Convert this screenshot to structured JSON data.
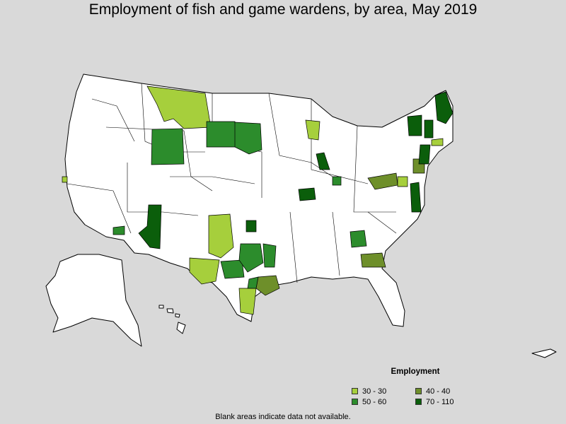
{
  "title": "Employment of fish and game wardens, by area, May 2019",
  "legend": {
    "title": "Employment",
    "items": [
      {
        "label": "30 - 30",
        "color": "#a6cf3c"
      },
      {
        "label": "40 - 40",
        "color": "#6e8f2a"
      },
      {
        "label": "50 - 60",
        "color": "#2c8c2c"
      },
      {
        "label": "70 - 110",
        "color": "#0b5e0b"
      }
    ]
  },
  "footnote": "Blank areas indicate data not available.",
  "colors": {
    "background": "#d9d9d9",
    "land": "#ffffff",
    "border": "#000000"
  }
}
